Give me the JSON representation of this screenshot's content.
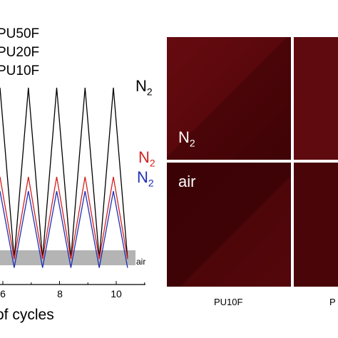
{
  "legend": [
    "PU50F",
    "PU20F",
    "PU10F"
  ],
  "curve_labels": [
    {
      "text": "N",
      "sub": "2",
      "color": "#000000"
    },
    {
      "text": "N",
      "sub": "2",
      "color": "#d42020"
    },
    {
      "text": "N",
      "sub": "2",
      "color": "#1f2fb5"
    }
  ],
  "air_label": "air",
  "x_ticks": [
    "6",
    "8",
    "10"
  ],
  "xlabel": "of cycles",
  "micrograph": {
    "regions": [
      {
        "text": "N",
        "sub": "2"
      },
      {
        "text": "air"
      }
    ],
    "panel_labels": [
      "PU10F",
      "P"
    ]
  },
  "chart_data": {
    "type": "line",
    "x_ticks": [
      6,
      8,
      10
    ],
    "xlabel": "of cycles",
    "series": [
      {
        "name": "PU50F",
        "color": "#000000",
        "x": [
          5.4,
          5.9,
          6.4,
          6.9,
          7.4,
          7.9,
          8.4,
          8.9,
          9.4,
          9.9,
          10.4
        ],
        "values": [
          0.1,
          0.98,
          0.02,
          0.98,
          0.02,
          0.98,
          0.02,
          0.98,
          0.02,
          0.98,
          0.02
        ]
      },
      {
        "name": "PU20F",
        "color": "#d42020",
        "x": [
          5.4,
          5.9,
          6.4,
          6.9,
          7.4,
          7.9,
          8.4,
          8.9,
          9.4,
          9.9,
          10.4
        ],
        "values": [
          0.1,
          0.48,
          0.02,
          0.48,
          0.02,
          0.48,
          0.02,
          0.48,
          0.02,
          0.48,
          0.02
        ]
      },
      {
        "name": "PU10F",
        "color": "#1f2fb5",
        "x": [
          5.4,
          5.9,
          6.4,
          6.9,
          7.4,
          7.9,
          8.4,
          8.9,
          9.4,
          9.9,
          10.4
        ],
        "values": [
          0.04,
          0.4,
          -0.03,
          0.4,
          -0.03,
          0.4,
          -0.03,
          0.4,
          -0.03,
          0.4,
          -0.03
        ]
      }
    ],
    "band": {
      "label": "air",
      "color": "#b4b4b4"
    }
  }
}
